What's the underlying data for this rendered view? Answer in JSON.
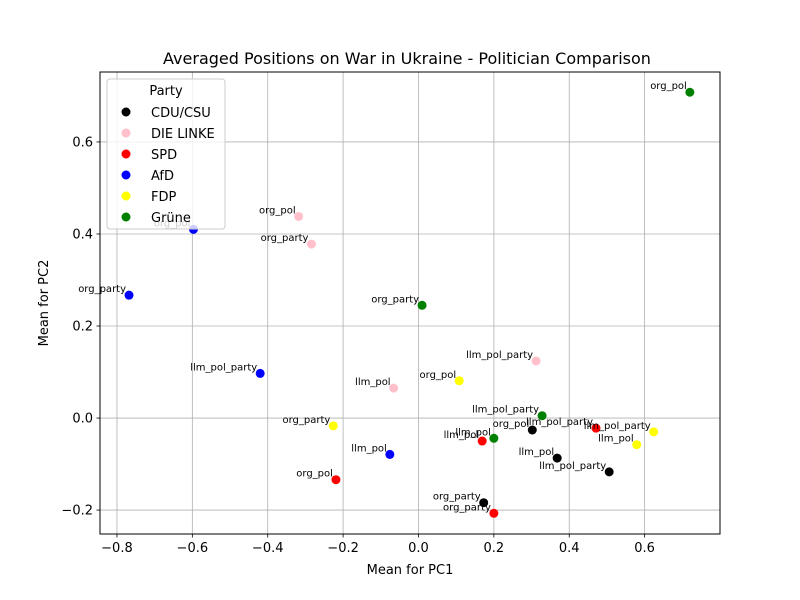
{
  "chart_data": {
    "type": "scatter",
    "title": "Averaged Positions on War in Ukraine - Politician Comparison",
    "xlabel": "Mean for PC1",
    "ylabel": "Mean for PC2",
    "xlim": [
      -0.845,
      0.8
    ],
    "ylim": [
      -0.252,
      0.752
    ],
    "xticks": [
      {
        "value": -0.8,
        "label": "−0.8"
      },
      {
        "value": -0.6,
        "label": "−0.6"
      },
      {
        "value": -0.4,
        "label": "−0.4"
      },
      {
        "value": -0.2,
        "label": "−0.2"
      },
      {
        "value": 0.0,
        "label": "0.0"
      },
      {
        "value": 0.2,
        "label": "0.2"
      },
      {
        "value": 0.4,
        "label": "0.4"
      },
      {
        "value": 0.6,
        "label": "0.6"
      }
    ],
    "yticks": [
      {
        "value": -0.2,
        "label": "−0.2"
      },
      {
        "value": 0.0,
        "label": "0.0"
      },
      {
        "value": 0.2,
        "label": "0.2"
      },
      {
        "value": 0.4,
        "label": "0.4"
      },
      {
        "value": 0.6,
        "label": "0.6"
      }
    ],
    "grid": true,
    "legend": {
      "title": "Party",
      "placement": "top-left"
    },
    "series": [
      {
        "name": "CDU/CSU",
        "color": "#000000",
        "points": [
          {
            "x": 0.173,
            "y": -0.184,
            "label": "org_party"
          },
          {
            "x": 0.302,
            "y": -0.026,
            "label": "org_pol"
          },
          {
            "x": 0.368,
            "y": -0.087,
            "label": "llm_pol"
          },
          {
            "x": 0.506,
            "y": -0.117,
            "label": "llm_pol_party"
          }
        ]
      },
      {
        "name": "DIE LINKE",
        "color": "#ffc0cb",
        "points": [
          {
            "x": -0.318,
            "y": 0.438,
            "label": "org_pol"
          },
          {
            "x": -0.284,
            "y": 0.378,
            "label": "org_party"
          },
          {
            "x": -0.066,
            "y": 0.065,
            "label": "llm_pol"
          },
          {
            "x": 0.312,
            "y": 0.124,
            "label": "llm_pol_party"
          }
        ]
      },
      {
        "name": "SPD",
        "color": "#ff0000",
        "points": [
          {
            "x": -0.219,
            "y": -0.134,
            "label": "org_pol"
          },
          {
            "x": 0.169,
            "y": -0.05,
            "label": "llm_pol"
          },
          {
            "x": 0.2,
            "y": -0.207,
            "label": "org_party"
          },
          {
            "x": 0.471,
            "y": -0.022,
            "label": "llm_pol_party"
          }
        ]
      },
      {
        "name": "AfD",
        "color": "#0000ff",
        "points": [
          {
            "x": -0.768,
            "y": 0.267,
            "label": "org_party"
          },
          {
            "x": -0.597,
            "y": 0.41,
            "label": "org_pol"
          },
          {
            "x": -0.42,
            "y": 0.097,
            "label": "llm_pol_party"
          },
          {
            "x": -0.076,
            "y": -0.079,
            "label": "llm_pol"
          }
        ]
      },
      {
        "name": "FDP",
        "color": "#ffff00",
        "points": [
          {
            "x": -0.226,
            "y": -0.017,
            "label": "org_party"
          },
          {
            "x": 0.108,
            "y": 0.081,
            "label": "org_pol"
          },
          {
            "x": 0.579,
            "y": -0.058,
            "label": "llm_pol"
          },
          {
            "x": 0.624,
            "y": -0.03,
            "label": "llm_pol_party"
          }
        ]
      },
      {
        "name": "Grüne",
        "color": "#008000",
        "points": [
          {
            "x": 0.0095,
            "y": 0.245,
            "label": "org_party"
          },
          {
            "x": 0.2,
            "y": -0.044,
            "label": "llm_pol"
          },
          {
            "x": 0.328,
            "y": 0.005,
            "label": "llm_pol_party"
          },
          {
            "x": 0.72,
            "y": 0.708,
            "label": "org_pol"
          }
        ]
      }
    ]
  }
}
